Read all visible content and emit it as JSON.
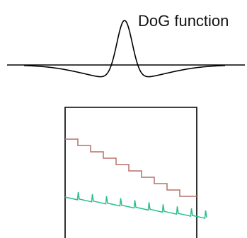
{
  "dog_panel": {
    "label": "DoG function",
    "stroke_color": "#000000"
  },
  "step_panel": {
    "frame_color": "#000000",
    "upper_trace_color": "#b5706a",
    "lower_trace_color": "#2bbf8a"
  }
}
